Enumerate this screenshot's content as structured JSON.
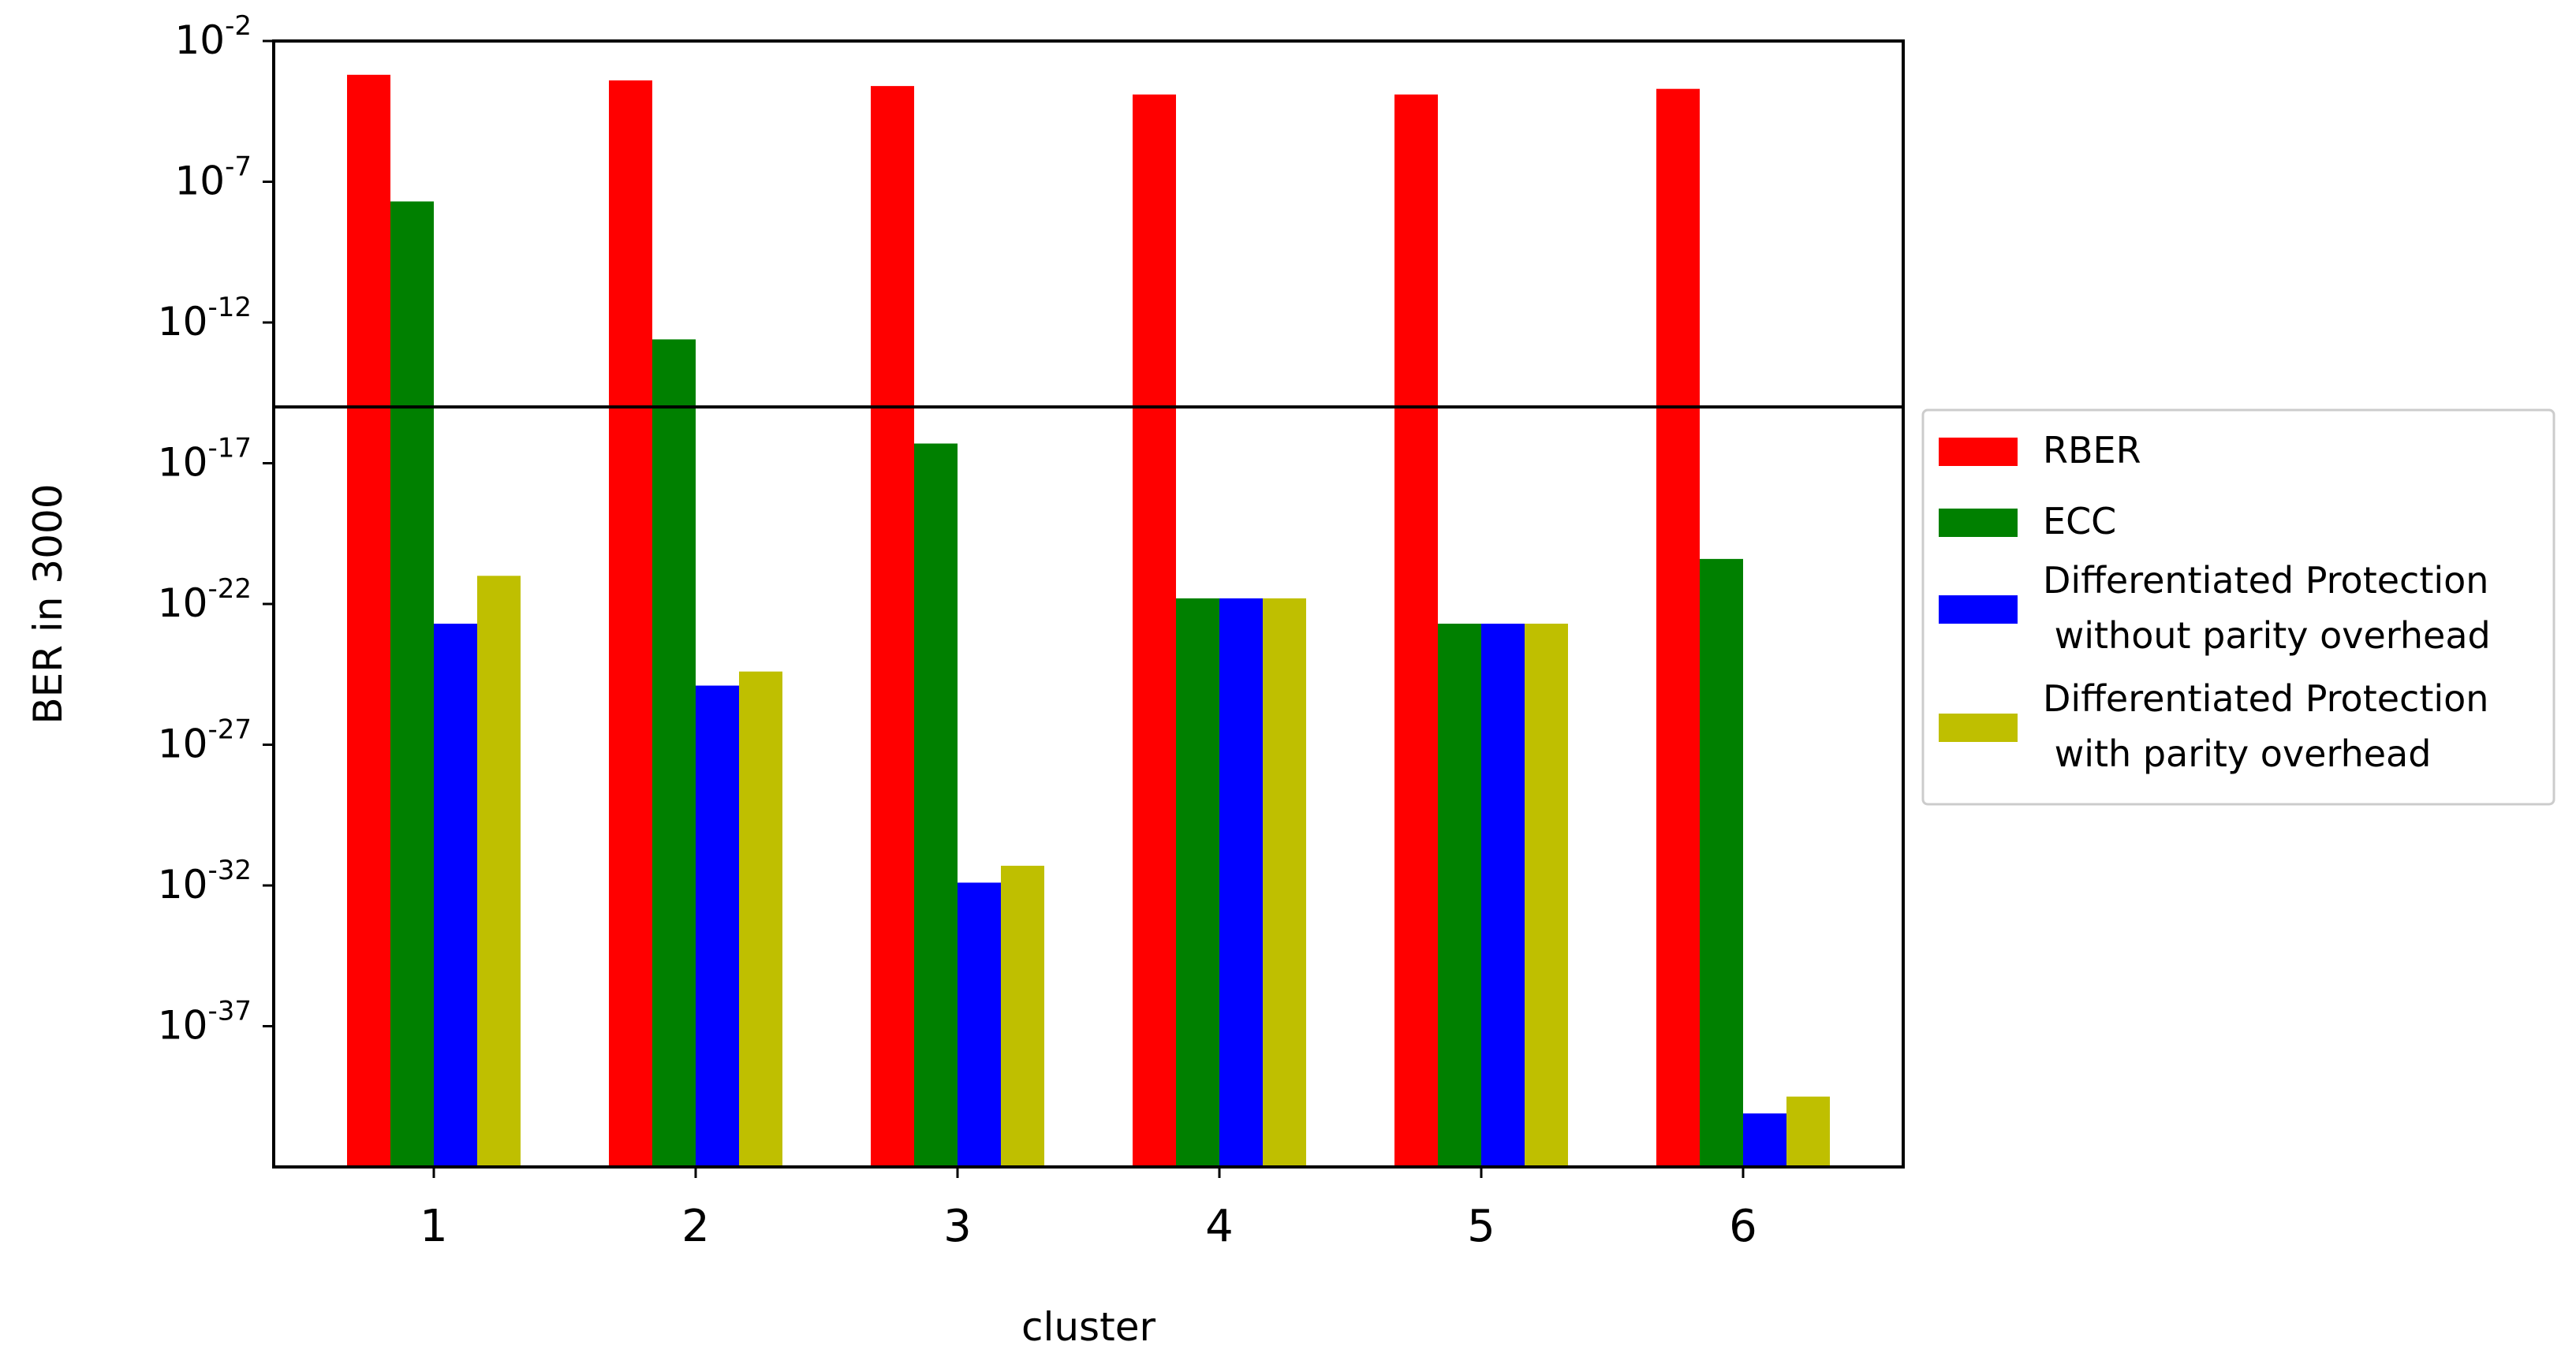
{
  "chart_data": {
    "type": "bar",
    "xlabel": "cluster",
    "ylabel": "BER in 3000",
    "y_scale": "log",
    "ylim_exponent": [
      -42,
      -2
    ],
    "categories": [
      "1",
      "2",
      "3",
      "4",
      "5",
      "6"
    ],
    "y_ticks": [
      {
        "base": "10",
        "exp": "-2",
        "value": -2
      },
      {
        "base": "10",
        "exp": "-7",
        "value": -7
      },
      {
        "base": "10",
        "exp": "-12",
        "value": -12
      },
      {
        "base": "10",
        "exp": "-17",
        "value": -17
      },
      {
        "base": "10",
        "exp": "-22",
        "value": -22
      },
      {
        "base": "10",
        "exp": "-27",
        "value": -27
      },
      {
        "base": "10",
        "exp": "-32",
        "value": -32
      },
      {
        "base": "10",
        "exp": "-37",
        "value": -37
      }
    ],
    "threshold_log10": -15,
    "series": [
      {
        "name": "RBER",
        "color": "#ff0000",
        "log10_values": [
          -3.2,
          -3.4,
          -3.6,
          -3.9,
          -3.9,
          -3.7
        ]
      },
      {
        "name": "ECC",
        "color": "#008000",
        "log10_values": [
          -7.7,
          -12.6,
          -16.3,
          -21.8,
          -22.7,
          -20.4
        ]
      },
      {
        "name": "Differentiated Protection\n without parity overhead",
        "color": "#0000ff",
        "log10_values": [
          -22.7,
          -24.9,
          -31.9,
          -21.8,
          -22.7,
          -40.1
        ]
      },
      {
        "name": "Differentiated Protection\n with parity overhead",
        "color": "#bfbf00",
        "log10_values": [
          -21.0,
          -24.4,
          -31.3,
          -21.8,
          -22.7,
          -39.5
        ]
      }
    ],
    "legend_position": "right, outside plot area",
    "grid": false
  }
}
